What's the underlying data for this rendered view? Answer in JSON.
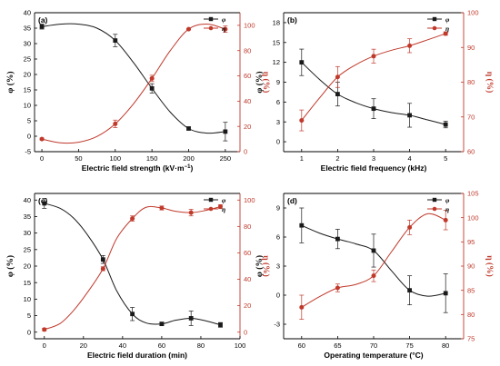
{
  "chart_data": [
    {
      "type": "line",
      "panel_label": "(a)",
      "xlabel": "Electric field strength (kV·m",
      "xlabel_sup": "−1",
      "xlabel_end": ")",
      "ylabel": "φ (%)",
      "ylabel_right": "η (%)",
      "xlim": [
        -10,
        270
      ],
      "xticks": [
        0,
        50,
        100,
        150,
        200,
        250
      ],
      "ylim": [
        -5,
        40
      ],
      "yticks": [
        -5,
        0,
        5,
        10,
        15,
        20,
        25,
        30,
        35,
        40
      ],
      "ylim_right": [
        0,
        110
      ],
      "yticks_right": [
        0,
        20,
        40,
        60,
        80,
        100
      ],
      "legend": "top-right",
      "series": [
        {
          "name": "φ",
          "axis": "left",
          "color": "#1a1a1a",
          "marker": "square",
          "x": [
            0,
            100,
            150,
            200,
            250
          ],
          "y": [
            35.5,
            31.0,
            15.5,
            2.5,
            1.5
          ],
          "err": [
            0.8,
            2.0,
            1.5,
            0.5,
            3.0
          ],
          "curve": [
            [
              0,
              35.5
            ],
            [
              25,
              36.3
            ],
            [
              50,
              36.3
            ],
            [
              75,
              35.0
            ],
            [
              100,
              31.0
            ],
            [
              125,
              23.8
            ],
            [
              150,
              15.5
            ],
            [
              175,
              7.8
            ],
            [
              200,
              2.5
            ],
            [
              225,
              1.0
            ],
            [
              250,
              1.5
            ]
          ]
        },
        {
          "name": "η",
          "axis": "right",
          "color": "#c0392b",
          "marker": "circle",
          "x": [
            0,
            100,
            150,
            200,
            250
          ],
          "y": [
            10,
            22,
            58,
            97,
            97
          ],
          "err": [
            0.8,
            3.0,
            2.5,
            0.5,
            2.5
          ],
          "curve": [
            [
              0,
              10
            ],
            [
              25,
              7.0
            ],
            [
              50,
              7.5
            ],
            [
              75,
              12.0
            ],
            [
              100,
              22
            ],
            [
              125,
              38
            ],
            [
              150,
              58
            ],
            [
              175,
              80
            ],
            [
              200,
              97
            ],
            [
              225,
              101
            ],
            [
              250,
              97
            ]
          ]
        }
      ]
    },
    {
      "type": "line",
      "panel_label": "(b)",
      "xlabel": "Electric field frequency (kHz)",
      "xlabel_sup": "",
      "xlabel_end": "",
      "ylabel": "φ (%)",
      "ylabel_right": "η (%)",
      "xlim": [
        0.5,
        5.5
      ],
      "xticks": [
        1,
        2,
        3,
        4,
        5
      ],
      "ylim": [
        -1.5,
        19.5
      ],
      "yticks": [
        0,
        3,
        6,
        9,
        12,
        15,
        18
      ],
      "ylim_right": [
        60,
        100
      ],
      "yticks_right": [
        60,
        70,
        80,
        90,
        100
      ],
      "legend": "top-right",
      "series": [
        {
          "name": "φ",
          "axis": "left",
          "color": "#1a1a1a",
          "marker": "square",
          "x": [
            1,
            2,
            3,
            4,
            5
          ],
          "y": [
            12.0,
            7.2,
            5.0,
            4.0,
            2.6
          ],
          "err": [
            2.0,
            1.8,
            1.5,
            1.8,
            0.5
          ],
          "curve": [
            [
              1,
              12.0
            ],
            [
              1.5,
              9.4
            ],
            [
              2,
              7.2
            ],
            [
              2.5,
              5.9
            ],
            [
              3,
              5.0
            ],
            [
              3.5,
              4.4
            ],
            [
              4,
              4.0
            ],
            [
              4.5,
              3.3
            ],
            [
              5,
              2.6
            ]
          ]
        },
        {
          "name": "η",
          "axis": "right",
          "color": "#c0392b",
          "marker": "circle",
          "x": [
            1,
            2,
            3,
            4,
            5
          ],
          "y": [
            69,
            81.5,
            87.5,
            90.5,
            94
          ],
          "err": [
            3.0,
            3.0,
            2.0,
            2.0,
            0.5
          ],
          "curve": [
            [
              1,
              69
            ],
            [
              1.5,
              75.5
            ],
            [
              2,
              81.5
            ],
            [
              2.5,
              85.0
            ],
            [
              3,
              87.5
            ],
            [
              3.5,
              89.2
            ],
            [
              4,
              90.5
            ],
            [
              4.5,
              92.2
            ],
            [
              5,
              94
            ]
          ]
        }
      ]
    },
    {
      "type": "line",
      "panel_label": "(c)",
      "xlabel": "Electric field duration (min)",
      "xlabel_sup": "",
      "xlabel_end": "",
      "ylabel": "φ (%)",
      "ylabel_right": "η (%)",
      "xlim": [
        -5,
        100
      ],
      "xticks": [
        0,
        20,
        40,
        60,
        80,
        100
      ],
      "ylim": [
        -2,
        42
      ],
      "yticks": [
        0,
        5,
        10,
        15,
        20,
        25,
        30,
        35,
        40
      ],
      "ylim_right": [
        -5,
        105
      ],
      "yticks_right": [
        0,
        20,
        40,
        60,
        80,
        100
      ],
      "legend": "top-right",
      "series": [
        {
          "name": "φ",
          "axis": "left",
          "color": "#1a1a1a",
          "marker": "square",
          "x": [
            0,
            30,
            45,
            60,
            75,
            90
          ],
          "y": [
            39.0,
            22.0,
            5.5,
            2.5,
            4.2,
            2.2
          ],
          "err": [
            1.5,
            1.2,
            2.0,
            0.5,
            2.2,
            0.7
          ],
          "curve": [
            [
              0,
              39.0
            ],
            [
              8,
              37.5
            ],
            [
              15,
              34.5
            ],
            [
              22,
              29.5
            ],
            [
              30,
              22.0
            ],
            [
              37,
              12.5
            ],
            [
              45,
              5.5
            ],
            [
              52,
              2.8
            ],
            [
              60,
              2.5
            ],
            [
              67,
              3.6
            ],
            [
              75,
              4.2
            ],
            [
              82,
              3.5
            ],
            [
              90,
              2.2
            ]
          ]
        },
        {
          "name": "η",
          "axis": "right",
          "color": "#c0392b",
          "marker": "circle",
          "x": [
            0,
            30,
            45,
            60,
            75,
            90
          ],
          "y": [
            2,
            48,
            86,
            94,
            90.5,
            95
          ],
          "err": [
            1.0,
            1.5,
            2.0,
            1.5,
            2.5,
            1.5
          ],
          "curve": [
            [
              0,
              2
            ],
            [
              8,
              6.5
            ],
            [
              15,
              16.5
            ],
            [
              22,
              30
            ],
            [
              30,
              48
            ],
            [
              37,
              71
            ],
            [
              45,
              86
            ],
            [
              52,
              94.5
            ],
            [
              60,
              94
            ],
            [
              67,
              91.5
            ],
            [
              75,
              90.5
            ],
            [
              82,
              92
            ],
            [
              90,
              95
            ]
          ]
        }
      ]
    },
    {
      "type": "line",
      "panel_label": "(d)",
      "xlabel": "Operating temperature (°C)",
      "xlabel_sup": "",
      "xlabel_end": "",
      "ylabel": "φ (%)",
      "ylabel_right": "η (%)",
      "xlim": [
        57.5,
        82.5
      ],
      "xticks": [
        60,
        65,
        70,
        75,
        80
      ],
      "ylim": [
        -4.5,
        10.5
      ],
      "yticks": [
        -3,
        0,
        3,
        6,
        9
      ],
      "ylim_right": [
        75,
        105
      ],
      "yticks_right": [
        75,
        80,
        85,
        90,
        95,
        100,
        105
      ],
      "legend": "top-right",
      "series": [
        {
          "name": "φ",
          "axis": "left",
          "color": "#1a1a1a",
          "marker": "square",
          "x": [
            60,
            65,
            70,
            75,
            80
          ],
          "y": [
            7.2,
            5.8,
            4.6,
            0.5,
            0.2
          ],
          "err": [
            1.8,
            1.0,
            1.7,
            1.5,
            2.0
          ],
          "curve": [
            [
              60,
              7.2
            ],
            [
              62.5,
              6.4
            ],
            [
              65,
              5.8
            ],
            [
              67.5,
              5.3
            ],
            [
              70,
              4.6
            ],
            [
              72.5,
              2.5
            ],
            [
              75,
              0.5
            ],
            [
              77.5,
              -0.1
            ],
            [
              80,
              0.2
            ]
          ]
        },
        {
          "name": "η",
          "axis": "right",
          "color": "#c0392b",
          "marker": "circle",
          "x": [
            60,
            65,
            70,
            75,
            80
          ],
          "y": [
            81.5,
            85.5,
            88.0,
            98.0,
            99.5
          ],
          "err": [
            2.5,
            0.8,
            1.2,
            1.5,
            2.0
          ],
          "curve": [
            [
              60,
              81.5
            ],
            [
              62.5,
              83.7
            ],
            [
              65,
              85.5
            ],
            [
              67.5,
              86.2
            ],
            [
              70,
              88.0
            ],
            [
              72.5,
              93.0
            ],
            [
              75,
              98.0
            ],
            [
              77.5,
              100.8
            ],
            [
              80,
              99.5
            ]
          ]
        }
      ]
    }
  ]
}
